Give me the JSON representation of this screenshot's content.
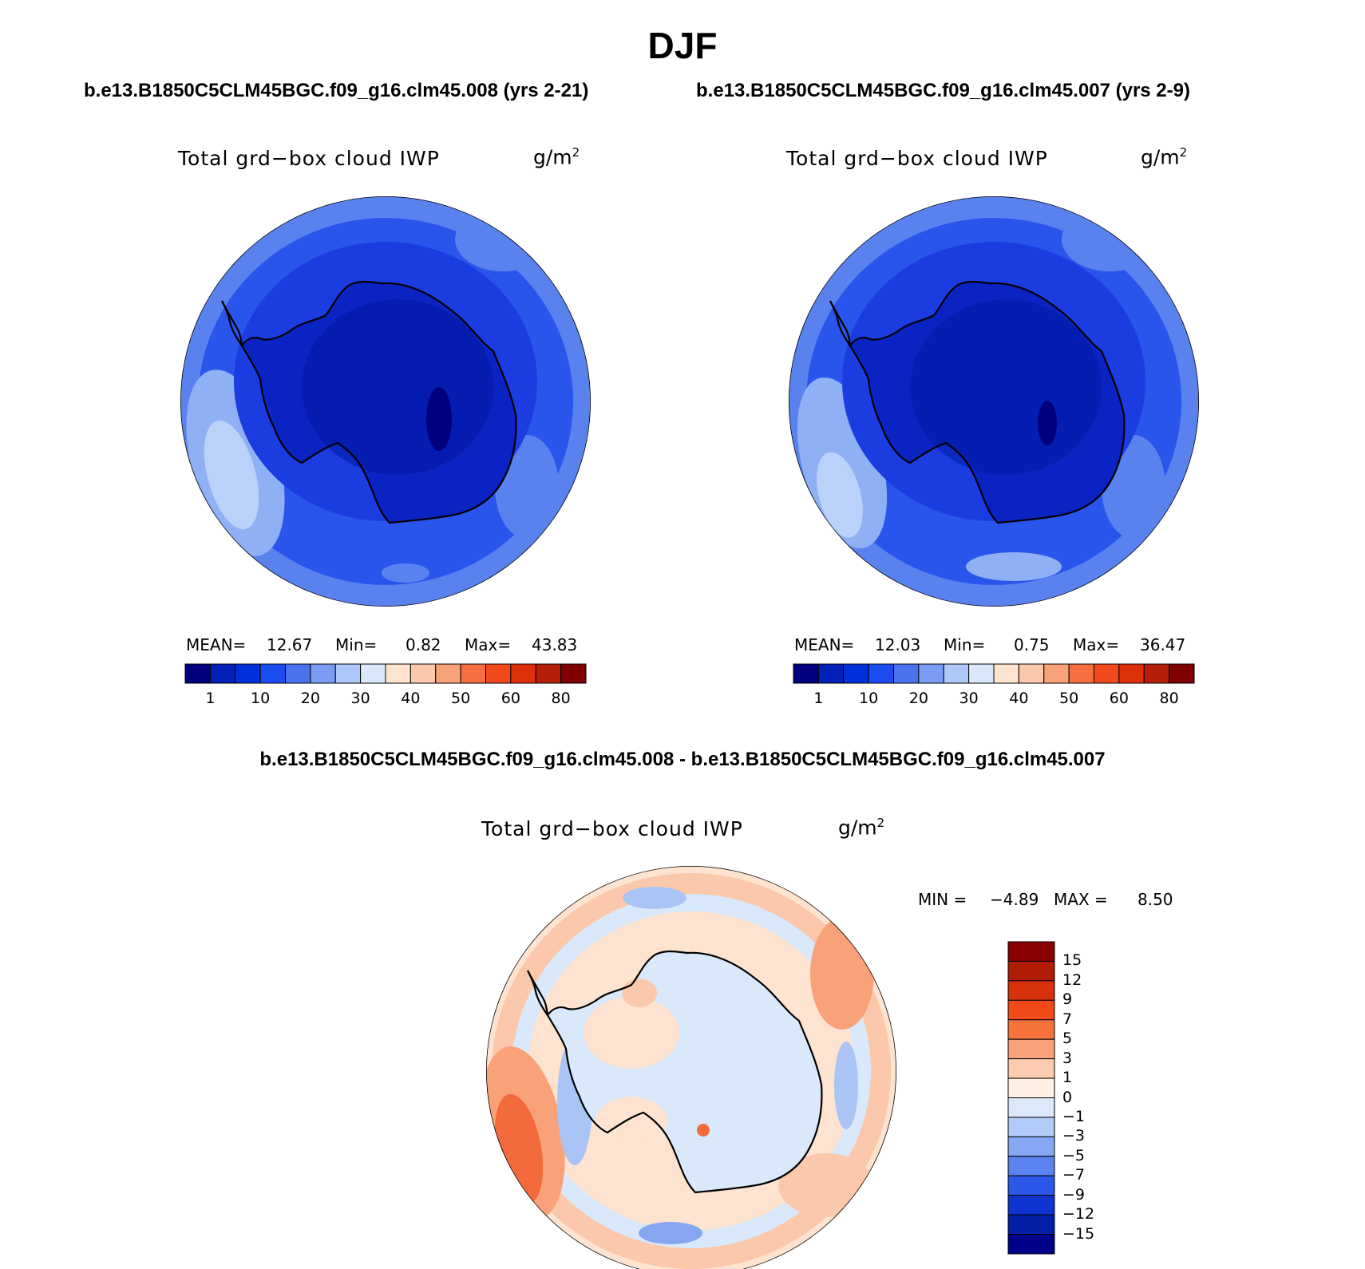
{
  "page": {
    "title": "DJF",
    "diff_title": "b.e13.B1850C5CLM45BGC.f09_g16.clm45.008 - b.e13.B1850C5CLM45BGC.f09_g16.clm45.007"
  },
  "panels": [
    {
      "id": "left",
      "case_title": "b.e13.B1850C5CLM45BGC.f09_g16.clm45.008 (yrs 2-21)",
      "variable": "Total grd−box cloud IWP",
      "units_base": "g/m",
      "units_exp": "2",
      "stats": {
        "mean_label": "MEAN=",
        "mean": "12.67",
        "min_label": "Min=",
        "min": "0.82",
        "max_label": "Max=",
        "max": "43.83"
      }
    },
    {
      "id": "right",
      "case_title": "b.e13.B1850C5CLM45BGC.f09_g16.clm45.007 (yrs 2-9)",
      "variable": "Total grd−box cloud IWP",
      "units_base": "g/m",
      "units_exp": "2",
      "stats": {
        "mean_label": "MEAN=",
        "mean": "12.03",
        "min_label": "Min=",
        "min": "0.75",
        "max_label": "Max=",
        "max": "36.47"
      }
    }
  ],
  "diff_panel": {
    "variable": "Total grd−box cloud IWP",
    "units_base": "g/m",
    "units_exp": "2",
    "stats": {
      "min_label": "MIN =",
      "min": "−4.89",
      "max_label": "MAX =",
      "max": "8.50"
    }
  },
  "colorbars": {
    "abs": {
      "levels": [
        "1",
        "10",
        "20",
        "30",
        "40",
        "50",
        "60",
        "80"
      ],
      "colors": [
        "#00007f",
        "#0020b8",
        "#0030dc",
        "#1a4cf0",
        "#4a72ee",
        "#7b9cf3",
        "#aec8f9",
        "#d9e9fb",
        "#fde3d0",
        "#fbc8ab",
        "#f9a27a",
        "#f66e42",
        "#f24a1c",
        "#df300c",
        "#b51e08",
        "#7f0000"
      ]
    },
    "diff": {
      "levels": [
        "15",
        "12",
        "9",
        "7",
        "5",
        "3",
        "1",
        "0",
        "−1",
        "−3",
        "−5",
        "−7",
        "−9",
        "−12",
        "−15"
      ],
      "colors_top_to_bottom": [
        "#8b0000",
        "#b01c06",
        "#d8320c",
        "#f04a18",
        "#f6733c",
        "#f9a27a",
        "#fccbb0",
        "#feefe2",
        "#dbe9fb",
        "#b3cbf8",
        "#86a8f4",
        "#5a82f0",
        "#2c58ea",
        "#0f34d0",
        "#0520a8",
        "#00008b"
      ]
    }
  },
  "map_colors": {
    "abs_ocean": "#2a55ec",
    "abs_outer": "#5a82ef",
    "abs_patch": "#8fb0f5",
    "abs_patch_light": "#bad2f9",
    "abs_ring": "#1a3ce0",
    "abs_continent": "#0a24c4",
    "abs_plateau": "#0018a0",
    "diff_base": "#fde3d0",
    "diff_peach": "#fbc8ab",
    "diff_orange": "#f9a27a",
    "diff_red": "#f36a3c",
    "diff_lightblue": "#d9e9fb",
    "diff_blue": "#aac4f6",
    "diff_midblue": "#86a6f2"
  }
}
